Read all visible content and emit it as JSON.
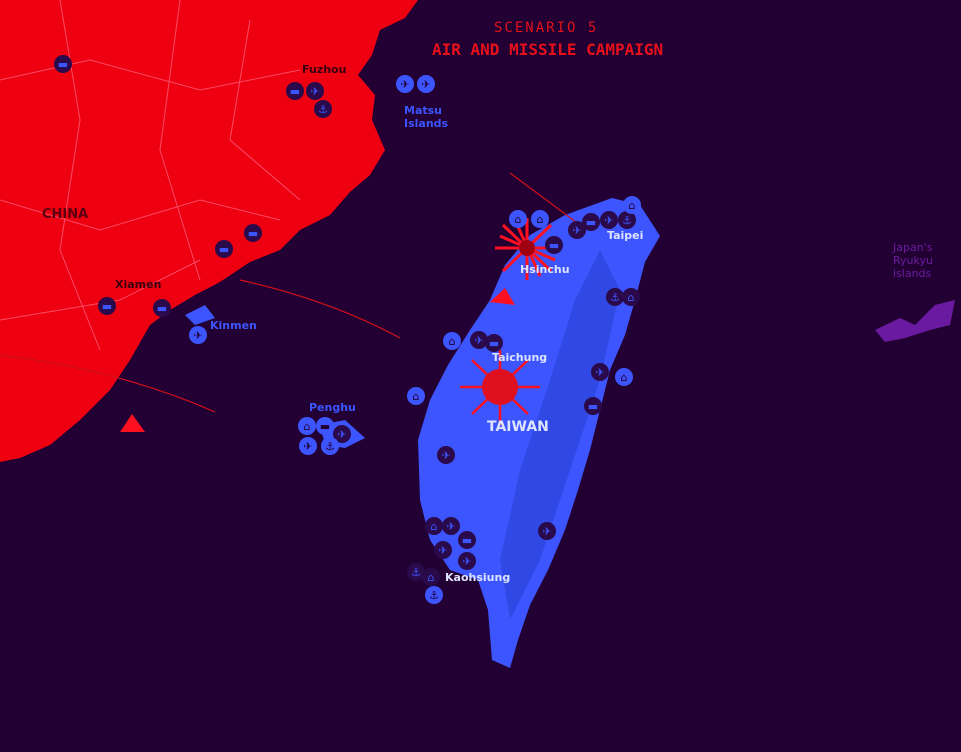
{
  "title": {
    "scenario": "SCENARIO 5",
    "campaign": "AIR AND MISSILE CAMPAIGN"
  },
  "colors": {
    "background": "#230033",
    "china": "#ee0010",
    "taiwan": "#3d55ff",
    "japan": "#6a1aa0",
    "strike": "#ff1020",
    "title": "#e0101a"
  },
  "labels": {
    "china": "CHINA",
    "fuzhou": "Fuzhou",
    "xiamen": "Xiamen",
    "matsu": "Matsu",
    "matsu2": "Islands",
    "kinmen": "Kinmen",
    "penghu": "Penghu",
    "taipei": "Taipei",
    "hsinchu": "Hsinchu",
    "taichung": "Taichung",
    "taiwan": "TAIWAN",
    "kaohsiung": "Kaohsiung",
    "japan1": "Japan's",
    "japan2": "Ryukyu",
    "japan3": "islands"
  },
  "icon_glyphs": {
    "airplane": "✈",
    "tank": "▬",
    "anchor": "⚓",
    "hangar": "⌂",
    "fighter": "✈"
  }
}
